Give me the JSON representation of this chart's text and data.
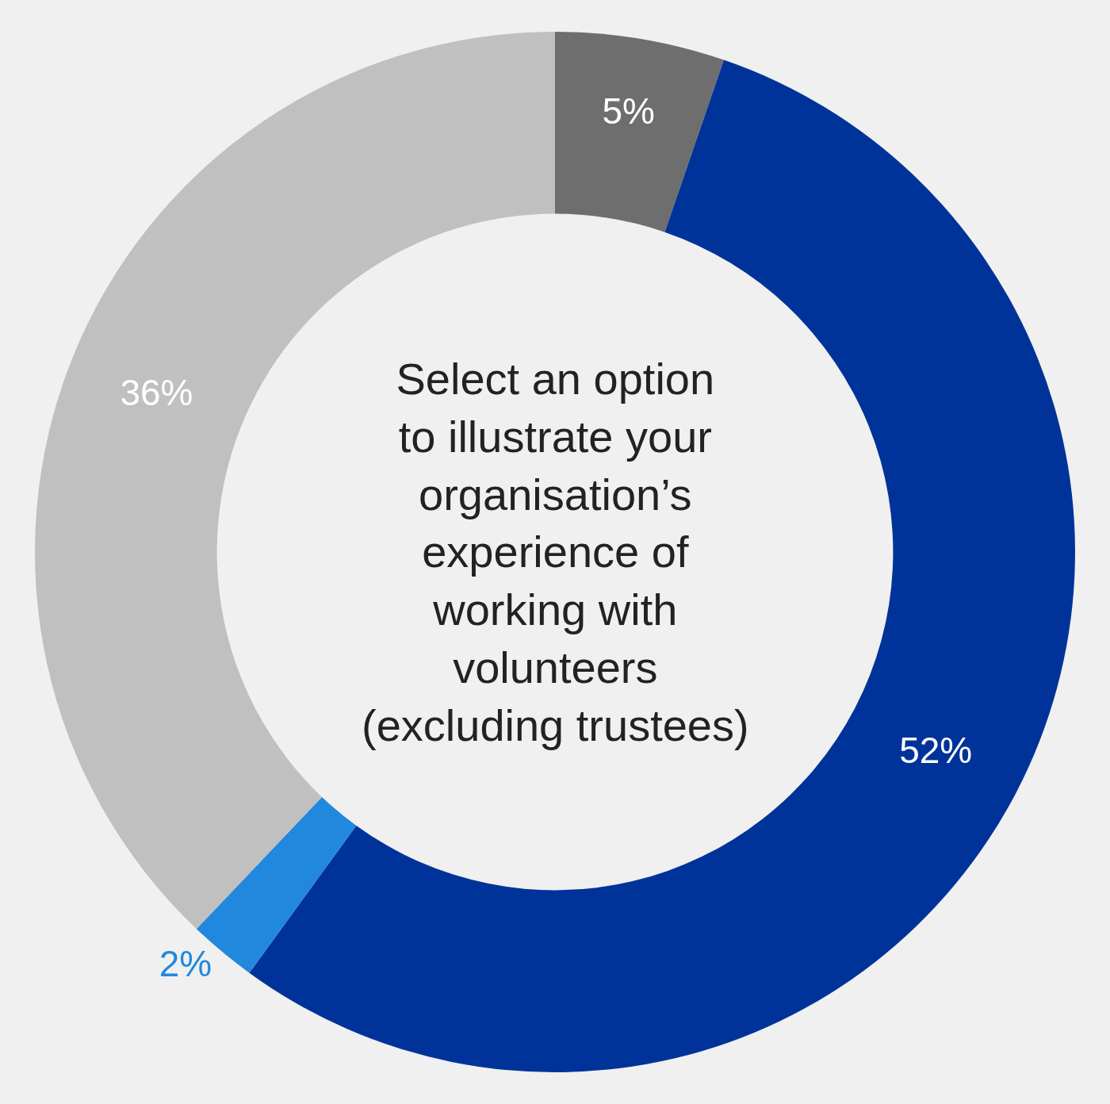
{
  "chart_data": {
    "type": "donut",
    "title": "Select an option\nto illustrate your\norganisation’s\nexperience of\nworking with\nvolunteers\n(excluding trustees)",
    "categories": [
      null,
      null,
      null,
      null
    ],
    "values": [
      5,
      52,
      2,
      36
    ],
    "colors": [
      "#6e6e6e",
      "#003399",
      "#2288dd",
      "#c0c0c0"
    ],
    "value_labels": [
      "5%",
      "52%",
      "2%",
      "36%"
    ],
    "legend": false
  }
}
